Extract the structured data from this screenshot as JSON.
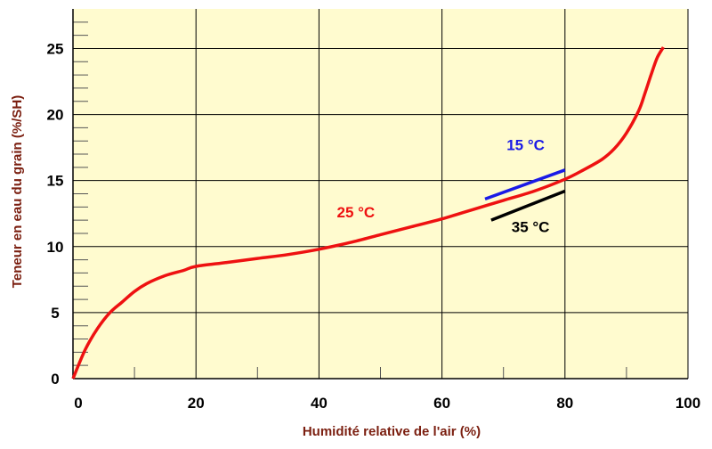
{
  "chart_data": {
    "type": "line",
    "title": "",
    "xlabel": "Humidité relative de l'air (%)",
    "ylabel": "Teneur en eau du grain  (%/SH)",
    "xlim": [
      0,
      100
    ],
    "ylim": [
      0,
      28
    ],
    "x_ticks": [
      0,
      20,
      40,
      60,
      80,
      100
    ],
    "x_tick_labels": [
      "0",
      "20",
      "40",
      "60",
      "80",
      "100"
    ],
    "y_ticks": [
      0,
      5,
      10,
      15,
      20,
      25
    ],
    "y_tick_labels": [
      "0",
      "5",
      "10",
      "15",
      "20",
      "25"
    ],
    "x_minor_step": 10,
    "y_minor_step": 1,
    "grid": true,
    "legend": "none",
    "colors": {
      "plot_background": "#FFFBCF",
      "grid": "#000000",
      "axis_title": "#7B1F10"
    },
    "series": [
      {
        "name": "25 °C",
        "color": "#EE1111",
        "x": [
          0,
          2,
          4,
          6,
          8,
          10,
          12,
          15,
          18,
          20,
          25,
          30,
          35,
          40,
          45,
          50,
          55,
          60,
          65,
          70,
          75,
          80,
          83,
          86,
          88,
          90,
          92,
          93,
          94,
          95,
          96
        ],
        "y": [
          0,
          2.2,
          3.8,
          5.0,
          5.8,
          6.6,
          7.2,
          7.8,
          8.2,
          8.5,
          8.8,
          9.1,
          9.4,
          9.8,
          10.3,
          10.9,
          11.5,
          12.1,
          12.8,
          13.5,
          14.2,
          15.1,
          15.8,
          16.6,
          17.4,
          18.6,
          20.3,
          21.6,
          23.0,
          24.3,
          25.1
        ]
      },
      {
        "name": "15 °C",
        "color": "#1A1AE6",
        "x": [
          67,
          80
        ],
        "y": [
          13.6,
          15.8
        ]
      },
      {
        "name": "35 °C",
        "color": "#000000",
        "x": [
          68,
          80
        ],
        "y": [
          12.0,
          14.2
        ]
      }
    ],
    "annotations": [
      {
        "text": "25 °C",
        "x": 46,
        "y": 12.2,
        "color": "#EE1111"
      },
      {
        "text": "15 °C",
        "x": 73.6,
        "y": 17.3,
        "color": "#1A1AE6"
      },
      {
        "text": "35 °C",
        "x": 74.4,
        "y": 11.1,
        "color": "#000000"
      }
    ]
  }
}
